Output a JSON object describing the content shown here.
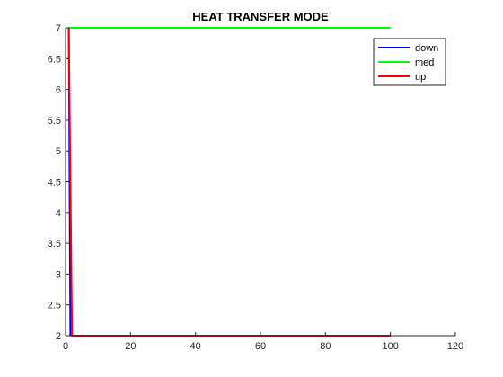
{
  "chart_data": {
    "type": "line",
    "title": "HEAT TRANSFER MODE",
    "xlabel": "",
    "ylabel": "",
    "xlim": [
      0,
      120
    ],
    "ylim": [
      2,
      7
    ],
    "xticks": [
      0,
      20,
      40,
      60,
      80,
      100,
      120
    ],
    "yticks": [
      2,
      2.5,
      3,
      3.5,
      4,
      4.5,
      5,
      5.5,
      6,
      6.5,
      7
    ],
    "grid": false,
    "legend_position": "top-right",
    "series": [
      {
        "name": "down",
        "color": "#0000ff",
        "x": [
          1,
          1.5
        ],
        "y": [
          7,
          2
        ]
      },
      {
        "name": "med",
        "color": "#00ff00",
        "x": [
          1,
          100
        ],
        "y": [
          7,
          7
        ]
      },
      {
        "name": "up",
        "color": "#ff0000",
        "x": [
          1,
          2,
          100
        ],
        "y": [
          7,
          2,
          2
        ]
      }
    ]
  }
}
